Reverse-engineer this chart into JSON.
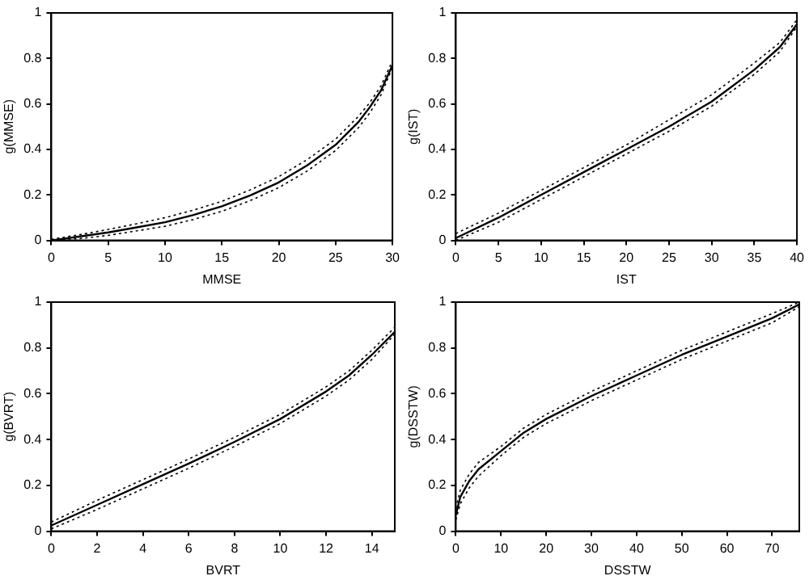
{
  "chart_data": [
    {
      "type": "line",
      "xlabel": "MMSE",
      "ylabel": "g(MMSE)",
      "xlim": [
        0,
        30
      ],
      "xticks": [
        0,
        5,
        10,
        15,
        20,
        25,
        30
      ],
      "ylim": [
        0,
        1
      ],
      "yticks": [
        0,
        0.2,
        0.4,
        0.6,
        0.8,
        1
      ],
      "grid": false,
      "legend": false,
      "marker": "none",
      "series": [
        {
          "color": "#000000",
          "line_style": "solid",
          "x": [
            0,
            2.5,
            5,
            7.5,
            10,
            12.5,
            15,
            17.5,
            20,
            22.5,
            25,
            27,
            28,
            29,
            30
          ],
          "values": [
            0,
            0.017,
            0.035,
            0.057,
            0.08,
            0.112,
            0.15,
            0.198,
            0.255,
            0.33,
            0.42,
            0.52,
            0.585,
            0.66,
            0.77
          ]
        },
        {
          "color": "#000000",
          "line_style": "dotted",
          "x": [
            0,
            2.5,
            5,
            7.5,
            10,
            12.5,
            15,
            17.5,
            20,
            22.5,
            25,
            27,
            28,
            29,
            30
          ],
          "values": [
            0,
            0.008,
            0.022,
            0.042,
            0.062,
            0.092,
            0.128,
            0.175,
            0.232,
            0.305,
            0.395,
            0.495,
            0.56,
            0.64,
            0.76
          ]
        },
        {
          "color": "#000000",
          "line_style": "dotted",
          "x": [
            0,
            2.5,
            5,
            7.5,
            10,
            12.5,
            15,
            17.5,
            20,
            22.5,
            25,
            27,
            28,
            29,
            30
          ],
          "values": [
            0.005,
            0.025,
            0.048,
            0.073,
            0.1,
            0.133,
            0.172,
            0.222,
            0.28,
            0.355,
            0.445,
            0.545,
            0.605,
            0.68,
            0.79
          ]
        }
      ]
    },
    {
      "type": "line",
      "xlabel": "IST",
      "ylabel": "g(IST)",
      "xlim": [
        0,
        40
      ],
      "xticks": [
        0,
        5,
        10,
        15,
        20,
        25,
        30,
        35,
        40
      ],
      "ylim": [
        0,
        1
      ],
      "yticks": [
        0,
        0.2,
        0.4,
        0.6,
        0.8,
        1
      ],
      "grid": false,
      "legend": false,
      "marker": "none",
      "series": [
        {
          "color": "#000000",
          "line_style": "solid",
          "x": [
            0,
            5,
            10,
            15,
            20,
            25,
            30,
            35,
            38,
            40
          ],
          "values": [
            0.01,
            0.1,
            0.2,
            0.3,
            0.4,
            0.5,
            0.61,
            0.75,
            0.85,
            0.95
          ]
        },
        {
          "color": "#000000",
          "line_style": "dotted",
          "x": [
            0,
            5,
            10,
            15,
            20,
            25,
            30,
            35,
            38,
            40
          ],
          "values": [
            0,
            0.08,
            0.18,
            0.28,
            0.38,
            0.48,
            0.59,
            0.73,
            0.83,
            0.94
          ]
        },
        {
          "color": "#000000",
          "line_style": "dotted",
          "x": [
            0,
            5,
            10,
            15,
            20,
            25,
            30,
            35,
            38,
            40
          ],
          "values": [
            0.03,
            0.12,
            0.22,
            0.32,
            0.42,
            0.53,
            0.64,
            0.78,
            0.87,
            0.97
          ]
        }
      ]
    },
    {
      "type": "line",
      "xlabel": "BVRT",
      "ylabel": "g(BVRT)",
      "xlim": [
        0,
        15
      ],
      "xticks": [
        0,
        2,
        4,
        6,
        8,
        10,
        12,
        14
      ],
      "ylim": [
        0,
        1
      ],
      "yticks": [
        0,
        0.2,
        0.4,
        0.6,
        0.8,
        1
      ],
      "grid": false,
      "legend": false,
      "marker": "none",
      "series": [
        {
          "color": "#000000",
          "line_style": "solid",
          "x": [
            0,
            2,
            4,
            6,
            8,
            10,
            12,
            13,
            14,
            15
          ],
          "values": [
            0.025,
            0.115,
            0.205,
            0.295,
            0.39,
            0.49,
            0.61,
            0.68,
            0.77,
            0.87
          ]
        },
        {
          "color": "#000000",
          "line_style": "dotted",
          "x": [
            0,
            2,
            4,
            6,
            8,
            10,
            12,
            13,
            14,
            15
          ],
          "values": [
            0.01,
            0.095,
            0.185,
            0.275,
            0.37,
            0.47,
            0.59,
            0.66,
            0.75,
            0.86
          ]
        },
        {
          "color": "#000000",
          "line_style": "dotted",
          "x": [
            0,
            2,
            4,
            6,
            8,
            10,
            12,
            13,
            14,
            15
          ],
          "values": [
            0.04,
            0.135,
            0.225,
            0.315,
            0.41,
            0.51,
            0.63,
            0.7,
            0.79,
            0.89
          ]
        }
      ]
    },
    {
      "type": "line",
      "xlabel": "DSSTW",
      "ylabel": "g(DSSTW)",
      "xlim": [
        0,
        76
      ],
      "xticks": [
        0,
        10,
        20,
        30,
        40,
        50,
        60,
        70
      ],
      "ylim": [
        0,
        1
      ],
      "yticks": [
        0,
        0.2,
        0.4,
        0.6,
        0.8,
        1
      ],
      "grid": false,
      "legend": false,
      "marker": "none",
      "series": [
        {
          "color": "#000000",
          "line_style": "solid",
          "x": [
            0,
            1,
            3,
            5,
            10,
            15,
            20,
            30,
            40,
            50,
            60,
            70,
            76
          ],
          "values": [
            0.07,
            0.15,
            0.22,
            0.27,
            0.35,
            0.43,
            0.49,
            0.59,
            0.68,
            0.77,
            0.85,
            0.93,
            0.99
          ]
        },
        {
          "color": "#000000",
          "line_style": "dotted",
          "x": [
            0,
            1,
            3,
            5,
            10,
            15,
            20,
            30,
            40,
            50,
            60,
            70,
            76
          ],
          "values": [
            0.05,
            0.12,
            0.19,
            0.24,
            0.33,
            0.41,
            0.47,
            0.57,
            0.66,
            0.75,
            0.83,
            0.91,
            0.98
          ]
        },
        {
          "color": "#000000",
          "line_style": "dotted",
          "x": [
            0,
            1,
            3,
            5,
            10,
            15,
            20,
            30,
            40,
            50,
            60,
            70,
            76
          ],
          "values": [
            0.1,
            0.18,
            0.25,
            0.3,
            0.37,
            0.45,
            0.51,
            0.61,
            0.7,
            0.79,
            0.87,
            0.95,
            1
          ]
        }
      ]
    }
  ]
}
